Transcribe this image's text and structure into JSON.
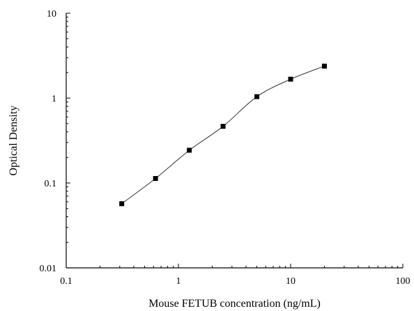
{
  "chart_data": {
    "type": "scatter",
    "xlabel": "Mouse FETUB concentration (ng/mL)",
    "ylabel": "Optical Density",
    "xscale": "log",
    "yscale": "log",
    "xlim": [
      0.1,
      100
    ],
    "ylim": [
      0.01,
      10
    ],
    "x_ticks": [
      {
        "value": 0.1,
        "label": "0.1"
      },
      {
        "value": 1,
        "label": "1"
      },
      {
        "value": 10,
        "label": "10"
      },
      {
        "value": 100,
        "label": "100"
      }
    ],
    "y_ticks": [
      {
        "value": 0.01,
        "label": "0.01"
      },
      {
        "value": 0.1,
        "label": "0.1"
      },
      {
        "value": 1,
        "label": "1"
      },
      {
        "value": 10,
        "label": "10"
      }
    ],
    "grid": false,
    "series": [
      {
        "marker": "square",
        "color": "#000000",
        "fit_line": true,
        "x": [
          0.3125,
          0.625,
          1.25,
          2.5,
          5,
          10,
          20
        ],
        "y": [
          0.057,
          0.113,
          0.243,
          0.465,
          1.04,
          1.67,
          2.38
        ]
      }
    ]
  }
}
